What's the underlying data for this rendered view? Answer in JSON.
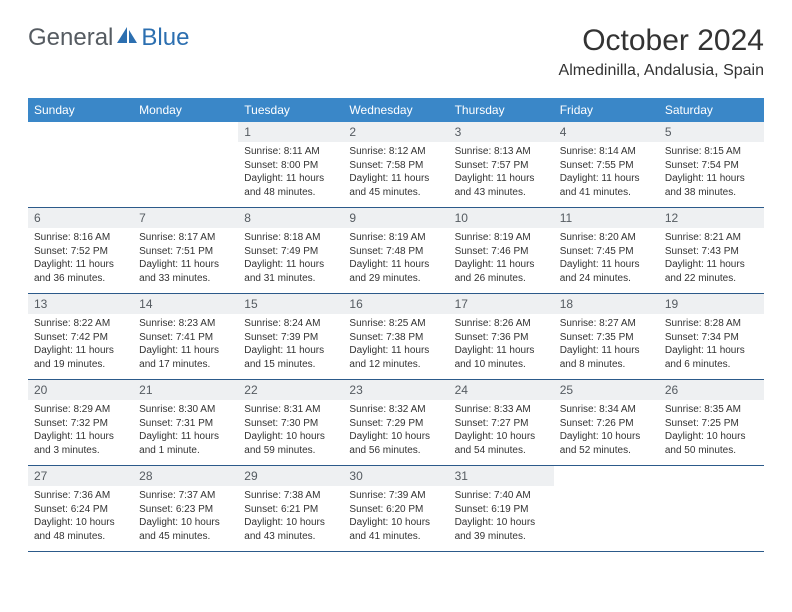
{
  "brand": {
    "main": "General",
    "accent": "Blue"
  },
  "title": "October 2024",
  "location": "Almedinilla, Andalusia, Spain",
  "colors": {
    "header_bg": "#3a87c8",
    "header_text": "#ffffff",
    "daynum_bg": "#eef0f2",
    "daynum_text": "#555b61",
    "border": "#2c5a8a",
    "logo_blue": "#2c6fb0",
    "logo_gray": "#555b61"
  },
  "weekdays": [
    "Sunday",
    "Monday",
    "Tuesday",
    "Wednesday",
    "Thursday",
    "Friday",
    "Saturday"
  ],
  "weeks": [
    [
      {
        "n": "",
        "sr": "",
        "ss": "",
        "dl": ""
      },
      {
        "n": "",
        "sr": "",
        "ss": "",
        "dl": ""
      },
      {
        "n": "1",
        "sr": "Sunrise: 8:11 AM",
        "ss": "Sunset: 8:00 PM",
        "dl": "Daylight: 11 hours and 48 minutes."
      },
      {
        "n": "2",
        "sr": "Sunrise: 8:12 AM",
        "ss": "Sunset: 7:58 PM",
        "dl": "Daylight: 11 hours and 45 minutes."
      },
      {
        "n": "3",
        "sr": "Sunrise: 8:13 AM",
        "ss": "Sunset: 7:57 PM",
        "dl": "Daylight: 11 hours and 43 minutes."
      },
      {
        "n": "4",
        "sr": "Sunrise: 8:14 AM",
        "ss": "Sunset: 7:55 PM",
        "dl": "Daylight: 11 hours and 41 minutes."
      },
      {
        "n": "5",
        "sr": "Sunrise: 8:15 AM",
        "ss": "Sunset: 7:54 PM",
        "dl": "Daylight: 11 hours and 38 minutes."
      }
    ],
    [
      {
        "n": "6",
        "sr": "Sunrise: 8:16 AM",
        "ss": "Sunset: 7:52 PM",
        "dl": "Daylight: 11 hours and 36 minutes."
      },
      {
        "n": "7",
        "sr": "Sunrise: 8:17 AM",
        "ss": "Sunset: 7:51 PM",
        "dl": "Daylight: 11 hours and 33 minutes."
      },
      {
        "n": "8",
        "sr": "Sunrise: 8:18 AM",
        "ss": "Sunset: 7:49 PM",
        "dl": "Daylight: 11 hours and 31 minutes."
      },
      {
        "n": "9",
        "sr": "Sunrise: 8:19 AM",
        "ss": "Sunset: 7:48 PM",
        "dl": "Daylight: 11 hours and 29 minutes."
      },
      {
        "n": "10",
        "sr": "Sunrise: 8:19 AM",
        "ss": "Sunset: 7:46 PM",
        "dl": "Daylight: 11 hours and 26 minutes."
      },
      {
        "n": "11",
        "sr": "Sunrise: 8:20 AM",
        "ss": "Sunset: 7:45 PM",
        "dl": "Daylight: 11 hours and 24 minutes."
      },
      {
        "n": "12",
        "sr": "Sunrise: 8:21 AM",
        "ss": "Sunset: 7:43 PM",
        "dl": "Daylight: 11 hours and 22 minutes."
      }
    ],
    [
      {
        "n": "13",
        "sr": "Sunrise: 8:22 AM",
        "ss": "Sunset: 7:42 PM",
        "dl": "Daylight: 11 hours and 19 minutes."
      },
      {
        "n": "14",
        "sr": "Sunrise: 8:23 AM",
        "ss": "Sunset: 7:41 PM",
        "dl": "Daylight: 11 hours and 17 minutes."
      },
      {
        "n": "15",
        "sr": "Sunrise: 8:24 AM",
        "ss": "Sunset: 7:39 PM",
        "dl": "Daylight: 11 hours and 15 minutes."
      },
      {
        "n": "16",
        "sr": "Sunrise: 8:25 AM",
        "ss": "Sunset: 7:38 PM",
        "dl": "Daylight: 11 hours and 12 minutes."
      },
      {
        "n": "17",
        "sr": "Sunrise: 8:26 AM",
        "ss": "Sunset: 7:36 PM",
        "dl": "Daylight: 11 hours and 10 minutes."
      },
      {
        "n": "18",
        "sr": "Sunrise: 8:27 AM",
        "ss": "Sunset: 7:35 PM",
        "dl": "Daylight: 11 hours and 8 minutes."
      },
      {
        "n": "19",
        "sr": "Sunrise: 8:28 AM",
        "ss": "Sunset: 7:34 PM",
        "dl": "Daylight: 11 hours and 6 minutes."
      }
    ],
    [
      {
        "n": "20",
        "sr": "Sunrise: 8:29 AM",
        "ss": "Sunset: 7:32 PM",
        "dl": "Daylight: 11 hours and 3 minutes."
      },
      {
        "n": "21",
        "sr": "Sunrise: 8:30 AM",
        "ss": "Sunset: 7:31 PM",
        "dl": "Daylight: 11 hours and 1 minute."
      },
      {
        "n": "22",
        "sr": "Sunrise: 8:31 AM",
        "ss": "Sunset: 7:30 PM",
        "dl": "Daylight: 10 hours and 59 minutes."
      },
      {
        "n": "23",
        "sr": "Sunrise: 8:32 AM",
        "ss": "Sunset: 7:29 PM",
        "dl": "Daylight: 10 hours and 56 minutes."
      },
      {
        "n": "24",
        "sr": "Sunrise: 8:33 AM",
        "ss": "Sunset: 7:27 PM",
        "dl": "Daylight: 10 hours and 54 minutes."
      },
      {
        "n": "25",
        "sr": "Sunrise: 8:34 AM",
        "ss": "Sunset: 7:26 PM",
        "dl": "Daylight: 10 hours and 52 minutes."
      },
      {
        "n": "26",
        "sr": "Sunrise: 8:35 AM",
        "ss": "Sunset: 7:25 PM",
        "dl": "Daylight: 10 hours and 50 minutes."
      }
    ],
    [
      {
        "n": "27",
        "sr": "Sunrise: 7:36 AM",
        "ss": "Sunset: 6:24 PM",
        "dl": "Daylight: 10 hours and 48 minutes."
      },
      {
        "n": "28",
        "sr": "Sunrise: 7:37 AM",
        "ss": "Sunset: 6:23 PM",
        "dl": "Daylight: 10 hours and 45 minutes."
      },
      {
        "n": "29",
        "sr": "Sunrise: 7:38 AM",
        "ss": "Sunset: 6:21 PM",
        "dl": "Daylight: 10 hours and 43 minutes."
      },
      {
        "n": "30",
        "sr": "Sunrise: 7:39 AM",
        "ss": "Sunset: 6:20 PM",
        "dl": "Daylight: 10 hours and 41 minutes."
      },
      {
        "n": "31",
        "sr": "Sunrise: 7:40 AM",
        "ss": "Sunset: 6:19 PM",
        "dl": "Daylight: 10 hours and 39 minutes."
      },
      {
        "n": "",
        "sr": "",
        "ss": "",
        "dl": ""
      },
      {
        "n": "",
        "sr": "",
        "ss": "",
        "dl": ""
      }
    ]
  ]
}
